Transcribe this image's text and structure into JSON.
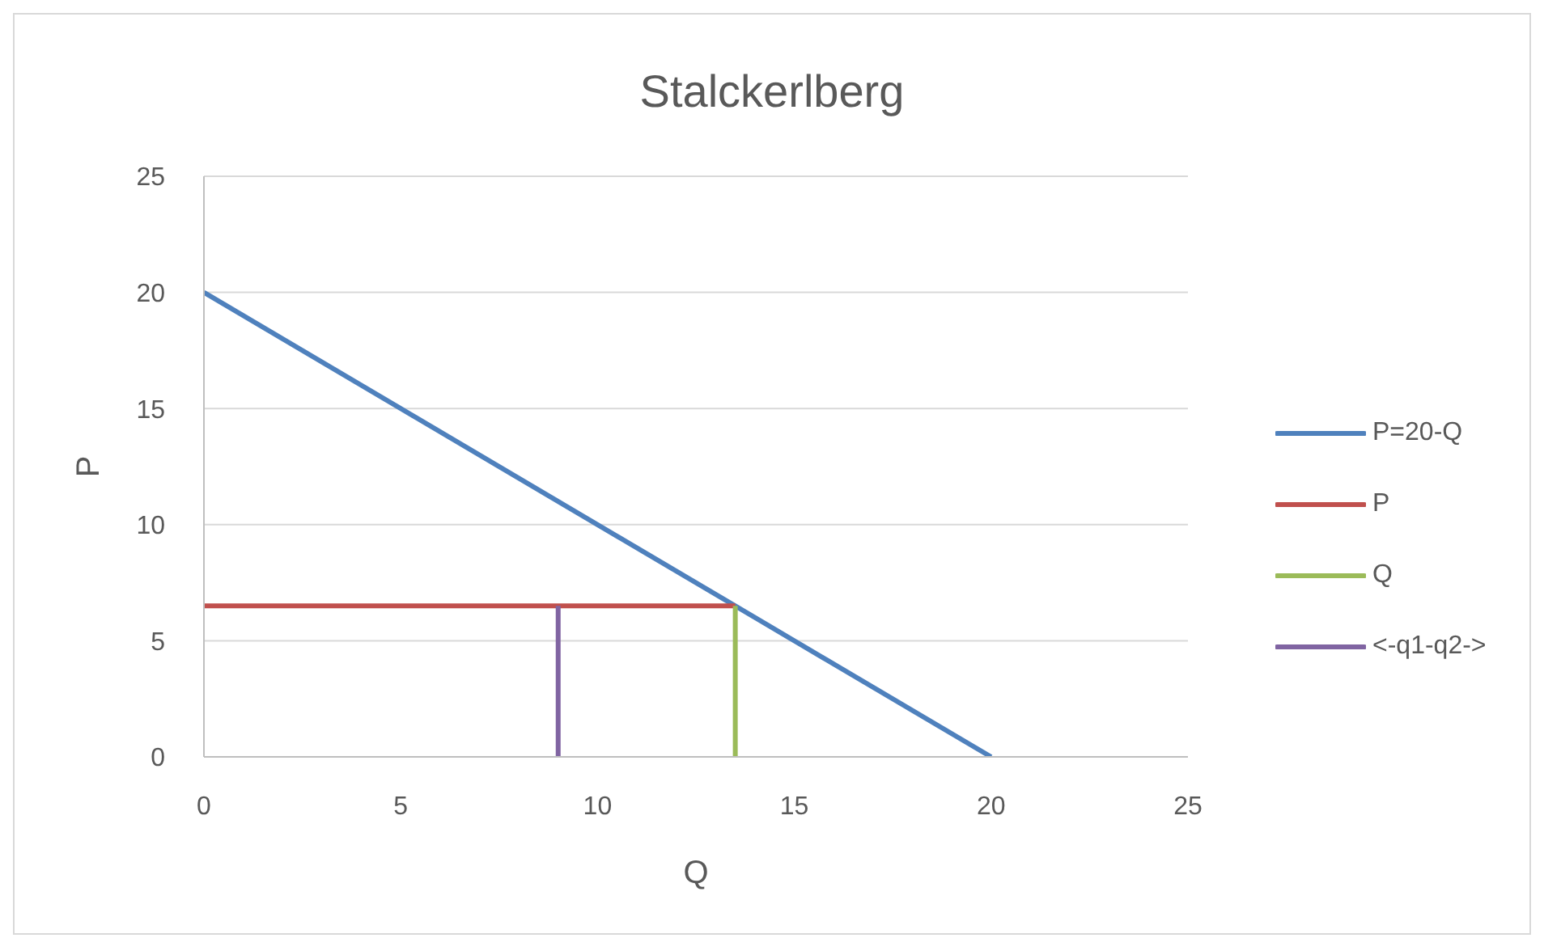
{
  "chart_data": {
    "type": "line",
    "title": "Stalckerlberg",
    "xlabel": "Q",
    "ylabel": "P",
    "xlim": [
      0,
      25
    ],
    "xticks": [
      0,
      5,
      10,
      15,
      20,
      25
    ],
    "ylim": [
      0,
      25
    ],
    "yticks": [
      0,
      5,
      10,
      15,
      20,
      25
    ],
    "grid": "y",
    "legend": "right",
    "marker": "none",
    "line_style": "solid",
    "series": [
      {
        "name": "P=20-Q",
        "color": "#4f81bd",
        "x": [
          0,
          20
        ],
        "values": [
          20,
          0
        ]
      },
      {
        "name": "P",
        "color": "#c0504d",
        "x": [
          0,
          13.5
        ],
        "values": [
          6.5,
          6.5
        ]
      },
      {
        "name": "Q",
        "color": "#9bbb59",
        "x": [
          13.5,
          13.5
        ],
        "values": [
          0,
          6.5
        ]
      },
      {
        "name": "<-q1-q2->",
        "color": "#8064a2",
        "x": [
          9,
          9
        ],
        "values": [
          0,
          6.5
        ]
      }
    ]
  }
}
